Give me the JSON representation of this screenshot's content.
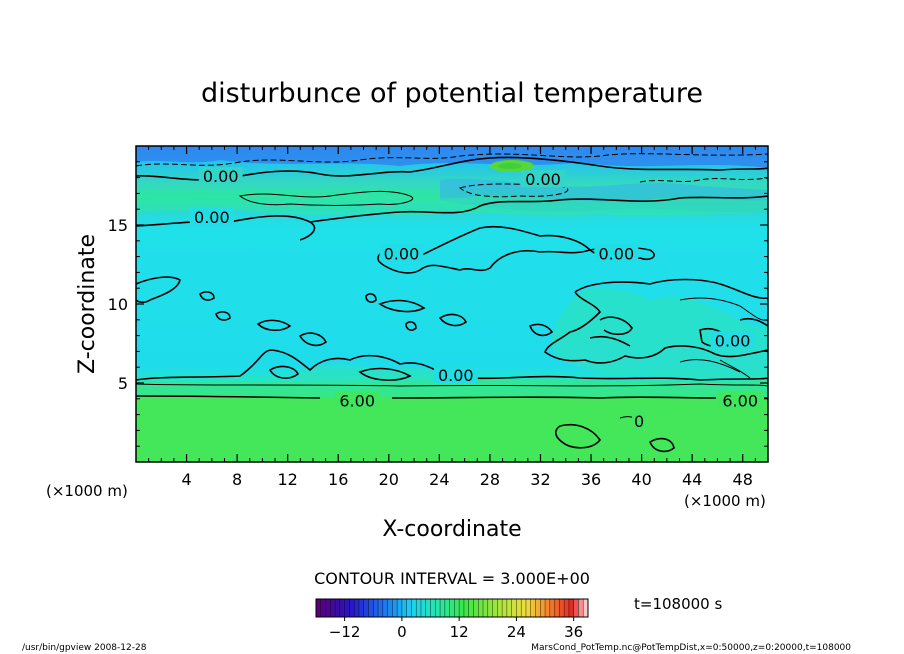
{
  "chart_data": {
    "type": "contour",
    "title": "disturbunce of potential temperature",
    "xlabel": "X-coordinate",
    "ylabel": "Z-coordinate",
    "x_unit_label": "(×1000 m)",
    "y_unit_label": "(×1000 m)",
    "xlim": [
      0,
      50
    ],
    "ylim": [
      0,
      20
    ],
    "x_ticks": [
      4,
      8,
      12,
      16,
      20,
      24,
      28,
      32,
      36,
      40,
      44,
      48
    ],
    "y_ticks": [
      5,
      10,
      15
    ],
    "contour_interval_text": "CONTOUR INTERVAL = 3.000E+00",
    "time_text": "t=108000 s",
    "colorbar": {
      "min": -18,
      "max": 39,
      "ticks": [
        -12,
        0,
        12,
        24,
        36
      ]
    },
    "contour_labels": [
      {
        "text": "0.00",
        "x": 6.7,
        "y": 18.1
      },
      {
        "text": "0.00",
        "x": 6.0,
        "y": 15.5
      },
      {
        "text": "0.00",
        "x": 32.2,
        "y": 17.9
      },
      {
        "text": "0.00",
        "x": 21.0,
        "y": 13.2
      },
      {
        "text": "0.00",
        "x": 38.0,
        "y": 13.2
      },
      {
        "text": "0.00",
        "x": 25.3,
        "y": 5.5
      },
      {
        "text": "0.00",
        "x": 47.2,
        "y": 7.7
      },
      {
        "text": "6.00",
        "x": 17.5,
        "y": 3.9
      },
      {
        "text": "6.00",
        "x": 47.8,
        "y": 3.9
      },
      {
        "text": "0",
        "x": 39.8,
        "y": 2.6
      }
    ],
    "colors": {
      "upper_layer": "#1fdcea",
      "lower_layer": "#3ee85c",
      "top_band": "#3aa0f0"
    }
  },
  "footer": {
    "left": "/usr/bin/gpview   2008-12-28",
    "right": "MarsCond_PotTemp.nc@PotTempDist,x=0:50000,z=0:20000,t=108000"
  }
}
